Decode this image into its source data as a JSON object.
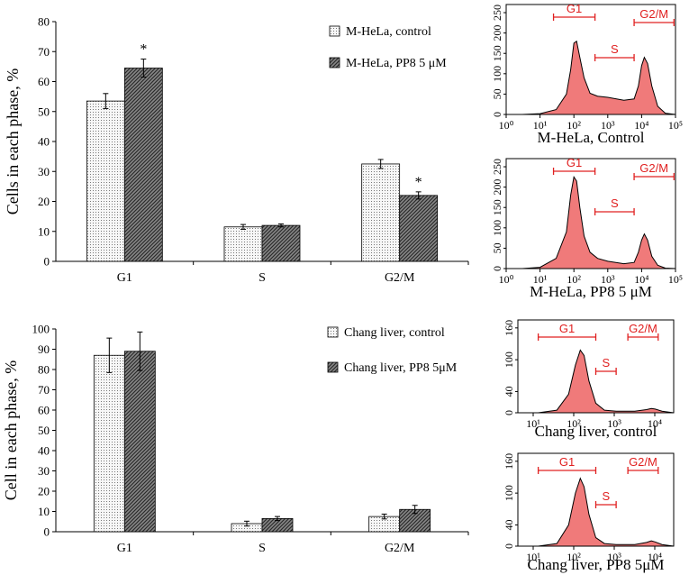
{
  "colors": {
    "dots_bar": "#f4f4f4",
    "hatch_bar": "#5a5a5a",
    "hist_fill": "#f07a7a",
    "hist_stroke": "#000000",
    "gate": "#e02020"
  },
  "chart_data": [
    {
      "type": "bar",
      "ylabel": "Cells in each phase, %",
      "ylim": [
        0,
        80
      ],
      "yticks": [
        0,
        10,
        20,
        30,
        40,
        50,
        60,
        70,
        80
      ],
      "categories": [
        "G1",
        "S",
        "G2/M"
      ],
      "series": [
        {
          "name": "M-HeLa, control",
          "pattern": "dots",
          "values": [
            53.5,
            11.5,
            32.5
          ],
          "errors": [
            2.5,
            0.8,
            1.5
          ]
        },
        {
          "name": "M-HeLa, PP8 5 μM",
          "pattern": "hatch",
          "values": [
            64.5,
            12,
            22
          ],
          "errors": [
            3,
            0.5,
            1.2
          ]
        }
      ],
      "annotations": [
        {
          "category": "G1",
          "series": 1,
          "text": "*"
        },
        {
          "category": "G2/M",
          "series": 1,
          "text": "*"
        }
      ],
      "legend_position": "top-right"
    },
    {
      "type": "bar",
      "ylabel": "Cell in each phase, %",
      "ylim": [
        0,
        100
      ],
      "yticks": [
        0,
        10,
        20,
        30,
        40,
        50,
        60,
        70,
        80,
        90,
        100
      ],
      "categories": [
        "G1",
        "S",
        "G2/M"
      ],
      "series": [
        {
          "name": "Chang liver, control",
          "pattern": "dots",
          "values": [
            87,
            4,
            7.5
          ],
          "errors": [
            8.5,
            1.2,
            1.2
          ]
        },
        {
          "name": "Chang liver, PP8 5μM",
          "pattern": "hatch",
          "values": [
            89,
            6.5,
            11
          ],
          "errors": [
            9.5,
            1,
            2
          ]
        }
      ],
      "legend_position": "top-right"
    },
    {
      "type": "area",
      "title": "M-HeLa, Control",
      "xscale": "log",
      "xlim": [
        1,
        100000
      ],
      "xticks": [
        "10⁰",
        "10¹",
        "10²",
        "10³",
        "10⁴",
        "10⁵"
      ],
      "yticks": [
        "0",
        "50",
        "100",
        "150",
        "200",
        "250"
      ],
      "ylim": [
        0,
        270
      ],
      "x": [
        1,
        3,
        10,
        30,
        60,
        80,
        100,
        120,
        150,
        200,
        300,
        500,
        1000,
        3000,
        6000,
        8000,
        10000,
        12000,
        15000,
        20000,
        30000,
        50000,
        100000
      ],
      "y": [
        0,
        0,
        2,
        12,
        50,
        110,
        175,
        180,
        140,
        90,
        52,
        45,
        42,
        35,
        38,
        70,
        120,
        140,
        125,
        70,
        20,
        3,
        0
      ],
      "gates": [
        {
          "label": "G1",
          "from": 25,
          "to": 420
        },
        {
          "label": "S",
          "from": 420,
          "to": 6000
        },
        {
          "label": "G2/M",
          "from": 6000,
          "to": 90000
        }
      ]
    },
    {
      "type": "area",
      "title": "M-HeLa, PP8 5 μM",
      "xscale": "log",
      "xlim": [
        1,
        100000
      ],
      "xticks": [
        "10⁰",
        "10¹",
        "10²",
        "10³",
        "10⁴",
        "10⁵"
      ],
      "yticks": [
        "0",
        "50",
        "100",
        "150",
        "200",
        "250"
      ],
      "ylim": [
        0,
        270
      ],
      "x": [
        1,
        3,
        10,
        30,
        60,
        80,
        100,
        120,
        150,
        200,
        300,
        500,
        1000,
        3000,
        6000,
        8000,
        10000,
        12000,
        15000,
        20000,
        30000,
        50000,
        100000
      ],
      "y": [
        0,
        0,
        3,
        25,
        90,
        180,
        225,
        215,
        150,
        80,
        40,
        25,
        18,
        12,
        15,
        40,
        70,
        85,
        70,
        30,
        8,
        1,
        0
      ],
      "gates": [
        {
          "label": "G1",
          "from": 25,
          "to": 420
        },
        {
          "label": "S",
          "from": 420,
          "to": 6000
        },
        {
          "label": "G2/M",
          "from": 6000,
          "to": 90000
        }
      ]
    },
    {
      "type": "area",
      "title": "Chang liver, control",
      "xscale": "log",
      "xlim": [
        3,
        30000
      ],
      "xticks": [
        "10¹",
        "10²",
        "10³",
        "10⁴"
      ],
      "yticks": [
        "0",
        "40",
        "100",
        "160"
      ],
      "ylim": [
        0,
        175
      ],
      "x": [
        3,
        10,
        30,
        60,
        90,
        120,
        150,
        200,
        300,
        500,
        1000,
        3000,
        6000,
        8000,
        10000,
        15000,
        30000
      ],
      "y": [
        0,
        0,
        5,
        35,
        90,
        118,
        108,
        60,
        18,
        5,
        3,
        3,
        6,
        8,
        7,
        3,
        0
      ],
      "gates": [
        {
          "label": "G1",
          "from": 10,
          "to": 300
        },
        {
          "label": "S",
          "from": 300,
          "to": 1000
        },
        {
          "label": "G2/M",
          "from": 2000,
          "to": 12000
        }
      ]
    },
    {
      "type": "area",
      "title": "Chang liver, PP8 5μM",
      "xscale": "log",
      "xlim": [
        3,
        30000
      ],
      "xticks": [
        "10¹",
        "10²",
        "10³",
        "10⁴"
      ],
      "yticks": [
        "0",
        "40",
        "100",
        "160"
      ],
      "ylim": [
        0,
        175
      ],
      "x": [
        3,
        10,
        30,
        60,
        90,
        120,
        150,
        200,
        300,
        500,
        1000,
        3000,
        6000,
        8000,
        10000,
        15000,
        30000
      ],
      "y": [
        0,
        0,
        5,
        40,
        100,
        128,
        112,
        60,
        16,
        5,
        3,
        3,
        7,
        10,
        8,
        3,
        0
      ],
      "gates": [
        {
          "label": "G1",
          "from": 10,
          "to": 300
        },
        {
          "label": "S",
          "from": 300,
          "to": 1000
        },
        {
          "label": "G2/M",
          "from": 2000,
          "to": 12000
        }
      ]
    }
  ]
}
